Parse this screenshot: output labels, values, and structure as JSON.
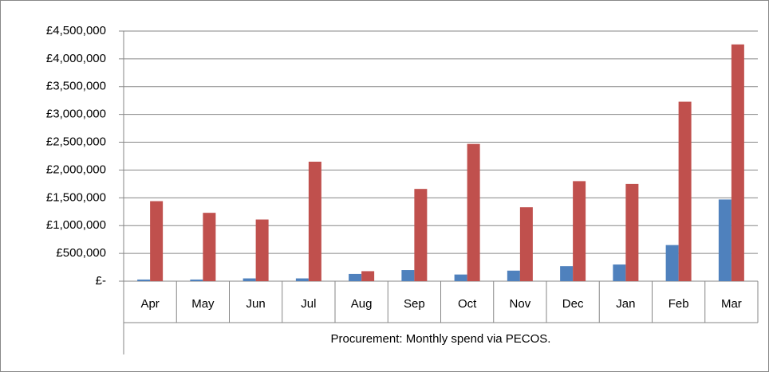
{
  "chart_data": {
    "type": "bar",
    "categories": [
      "Apr",
      "May",
      "Jun",
      "Jul",
      "Aug",
      "Sep",
      "Oct",
      "Nov",
      "Dec",
      "Jan",
      "Feb",
      "Mar"
    ],
    "x_group_label": "Procurement: Monthly spend via PECOS.",
    "series": [
      {
        "color": "#4f81bd",
        "values": [
          30000,
          30000,
          50000,
          50000,
          130000,
          200000,
          120000,
          190000,
          270000,
          300000,
          650000,
          1470000
        ]
      },
      {
        "color": "#c0504d",
        "values": [
          1440000,
          1230000,
          1110000,
          2150000,
          180000,
          1660000,
          2470000,
          1330000,
          1800000,
          1750000,
          3230000,
          4260000
        ]
      }
    ],
    "ylim": [
      0,
      4500000
    ],
    "yticks": [
      {
        "value": 0,
        "label": "£-"
      },
      {
        "value": 500000,
        "label": "£500,000"
      },
      {
        "value": 1000000,
        "label": "£1,000,000"
      },
      {
        "value": 1500000,
        "label": "£1,500,000"
      },
      {
        "value": 2000000,
        "label": "£2,000,000"
      },
      {
        "value": 2500000,
        "label": "£2,500,000"
      },
      {
        "value": 3000000,
        "label": "£3,000,000"
      },
      {
        "value": 3500000,
        "label": "£3,500,000"
      },
      {
        "value": 4000000,
        "label": "£4,000,000"
      },
      {
        "value": 4500000,
        "label": "£4,500,000"
      }
    ],
    "grid": true
  }
}
